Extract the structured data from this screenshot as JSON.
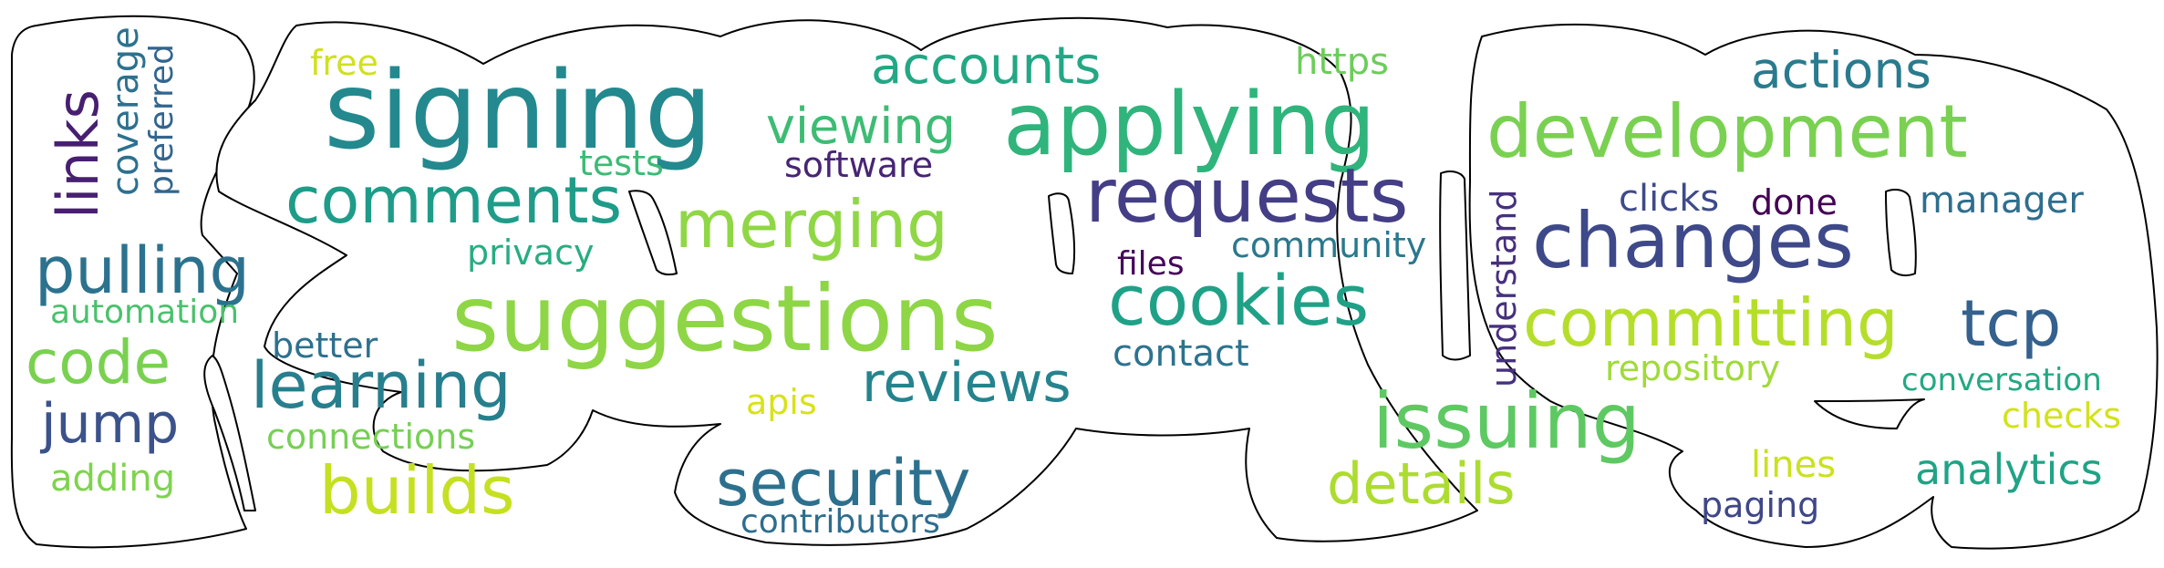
{
  "outline_stroke": "#000000",
  "words": [
    {
      "id": "signing",
      "text": "signing",
      "color": "#23898e"
    },
    {
      "id": "applying",
      "text": "applying",
      "color": "#2fb47c"
    },
    {
      "id": "development",
      "text": "development",
      "color": "#7ad151"
    },
    {
      "id": "suggestions",
      "text": "suggestions",
      "color": "#8ed645"
    },
    {
      "id": "requests",
      "text": "requests",
      "color": "#433e85"
    },
    {
      "id": "changes",
      "text": "changes",
      "color": "#3e4989"
    },
    {
      "id": "issuing",
      "text": "issuing",
      "color": "#5ec962"
    },
    {
      "id": "cookies",
      "text": "cookies",
      "color": "#1fa187"
    },
    {
      "id": "committing",
      "text": "committing",
      "color": "#b5de2b"
    },
    {
      "id": "comments",
      "text": "comments",
      "color": "#1e9c89"
    },
    {
      "id": "merging",
      "text": "merging",
      "color": "#8fd744"
    },
    {
      "id": "pulling",
      "text": "pulling",
      "color": "#2c728e"
    },
    {
      "id": "learning",
      "text": "learning",
      "color": "#277f8e"
    },
    {
      "id": "builds",
      "text": "builds",
      "color": "#c5e021"
    },
    {
      "id": "security",
      "text": "security",
      "color": "#2d708e"
    },
    {
      "id": "reviews",
      "text": "reviews",
      "color": "#25838e"
    },
    {
      "id": "accounts",
      "text": "accounts",
      "color": "#22a884"
    },
    {
      "id": "viewing",
      "text": "viewing",
      "color": "#3dbc74"
    },
    {
      "id": "details",
      "text": "details",
      "color": "#addc30"
    },
    {
      "id": "tcp",
      "text": "tcp",
      "color": "#34618d"
    },
    {
      "id": "code",
      "text": "code",
      "color": "#7ad151"
    },
    {
      "id": "jump",
      "text": "jump",
      "color": "#3b528b"
    },
    {
      "id": "actions",
      "text": "actions",
      "color": "#297b8e"
    },
    {
      "id": "links",
      "text": "links",
      "color": "#481f70"
    },
    {
      "id": "coverage",
      "text": "coverage",
      "color": "#2d718e"
    },
    {
      "id": "preferred",
      "text": "preferred",
      "color": "#32658e"
    },
    {
      "id": "understand",
      "text": "understand",
      "color": "#46307e"
    },
    {
      "id": "free",
      "text": "free",
      "color": "#d0e11c"
    },
    {
      "id": "https",
      "text": "https",
      "color": "#6ccd5a"
    },
    {
      "id": "tests",
      "text": "tests",
      "color": "#3bbb75"
    },
    {
      "id": "software",
      "text": "software",
      "color": "#482475"
    },
    {
      "id": "privacy",
      "text": "privacy",
      "color": "#27ad81"
    },
    {
      "id": "community",
      "text": "community",
      "color": "#2a788e"
    },
    {
      "id": "files",
      "text": "files",
      "color": "#450559"
    },
    {
      "id": "contact",
      "text": "contact",
      "color": "#2c738e"
    },
    {
      "id": "automation",
      "text": "automation",
      "color": "#4ac16d"
    },
    {
      "id": "better",
      "text": "better",
      "color": "#2d708e"
    },
    {
      "id": "connections",
      "text": "connections",
      "color": "#75d054"
    },
    {
      "id": "adding",
      "text": "adding",
      "color": "#7fd34e"
    },
    {
      "id": "apis",
      "text": "apis",
      "color": "#d8e219"
    },
    {
      "id": "contributors",
      "text": "contributors",
      "color": "#2e6d8e"
    },
    {
      "id": "clicks",
      "text": "clicks",
      "color": "#3e4a89"
    },
    {
      "id": "done",
      "text": "done",
      "color": "#440154"
    },
    {
      "id": "manager",
      "text": "manager",
      "color": "#2e6e8e"
    },
    {
      "id": "repository",
      "text": "repository",
      "color": "#a0da39"
    },
    {
      "id": "conversation",
      "text": "conversation",
      "color": "#23a983"
    },
    {
      "id": "checks",
      "text": "checks",
      "color": "#d2e21b"
    },
    {
      "id": "lines",
      "text": "lines",
      "color": "#cae11f"
    },
    {
      "id": "analytics",
      "text": "analytics",
      "color": "#20a386"
    },
    {
      "id": "paging",
      "text": "paging",
      "color": "#3f4788"
    }
  ]
}
